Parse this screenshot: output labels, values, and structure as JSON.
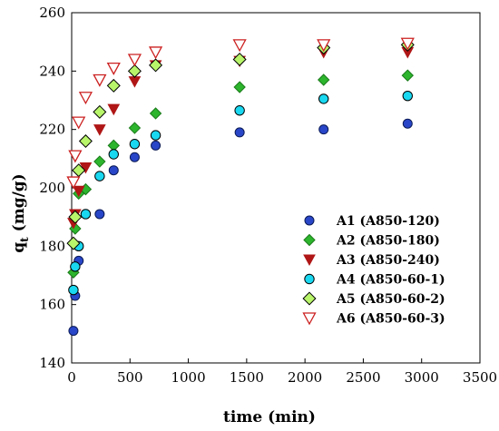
{
  "chart_data": {
    "type": "scatter",
    "title": "",
    "xlabel": "time (min)",
    "ylabel_main": "q",
    "ylabel_sub": "t",
    "ylabel_unit": " (mg/g)",
    "xlim": [
      0,
      3500
    ],
    "ylim": [
      140,
      260
    ],
    "xticks": [
      "0",
      "500",
      "1000",
      "1500",
      "2000",
      "2500",
      "3000",
      "3500"
    ],
    "yticks": [
      "140",
      "160",
      "180",
      "200",
      "220",
      "240",
      "260"
    ],
    "grid": false,
    "legend_position": "right",
    "series": [
      {
        "name": "A1 (A850-120)",
        "marker": "circle-blue",
        "x": [
          15,
          30,
          60,
          120,
          240,
          360,
          540,
          720,
          1440,
          2160,
          2880
        ],
        "y": [
          151,
          163,
          175,
          191,
          191,
          206,
          210.5,
          214.5,
          219,
          220,
          222
        ]
      },
      {
        "name": "A2 (A850-180)",
        "marker": "diamond-green",
        "x": [
          15,
          30,
          60,
          120,
          240,
          360,
          540,
          720,
          1440,
          2160,
          2880
        ],
        "y": [
          171,
          186,
          198,
          199.5,
          209,
          214.5,
          220.5,
          225.5,
          234.5,
          237,
          238.5
        ]
      },
      {
        "name": "A3 (A850-240)",
        "marker": "triangle-down-red",
        "x": [
          15,
          30,
          60,
          120,
          240,
          360,
          540,
          720,
          1440,
          2160,
          2880
        ],
        "y": [
          188,
          191,
          199,
          207,
          220,
          227,
          236.5,
          242,
          243.5,
          246.5,
          246.5
        ]
      },
      {
        "name": "A4 (A850-60-1)",
        "marker": "circle-cyan",
        "x": [
          15,
          30,
          60,
          120,
          240,
          360,
          540,
          720,
          1440,
          2160,
          2880
        ],
        "y": [
          165,
          173,
          180,
          191,
          204,
          211.5,
          215,
          218,
          226.5,
          230.5,
          231.5
        ]
      },
      {
        "name": "A5 (A850-60-2)",
        "marker": "diamond-lightgreen",
        "x": [
          15,
          30,
          60,
          120,
          240,
          360,
          540,
          720,
          1440,
          2160,
          2880
        ],
        "y": [
          181,
          190,
          206,
          216,
          226,
          235,
          240,
          242,
          244,
          248,
          249
        ]
      },
      {
        "name": "A6 (A850-60-3)",
        "marker": "triangle-down-open-red",
        "x": [
          15,
          30,
          60,
          120,
          240,
          360,
          540,
          720,
          1440,
          2160,
          2880
        ],
        "y": [
          202,
          211,
          222.5,
          231,
          237,
          241,
          244,
          246.5,
          249,
          249,
          249.5
        ]
      }
    ]
  },
  "colors": {
    "A1": "#2946c8",
    "A2": "#2db52d",
    "A3": "#b01616",
    "A4": "#19d8f0",
    "A5": "#b8f56a",
    "A6": "#cc2020"
  }
}
